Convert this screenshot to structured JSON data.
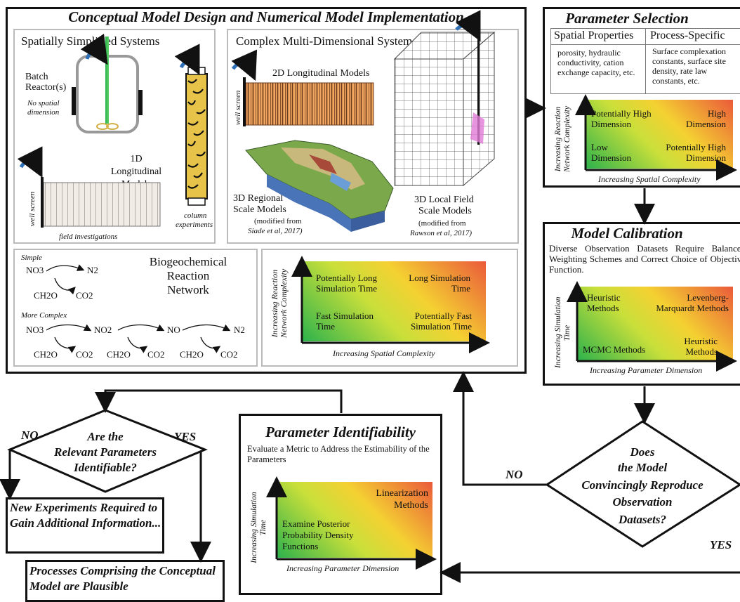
{
  "main": {
    "title": "Conceptual Model Design and Numerical Model Implementation",
    "simplified": {
      "title": "Spatially Simplified Systems",
      "batch": "Batch Reactor(s)",
      "batch_note1": "No spatial",
      "batch_note2": "dimension",
      "longitudinal": "1D Longitudinal Models",
      "well_screen": "well screen",
      "field": "field investigations",
      "column1": "column",
      "column2": "experiments"
    },
    "complex": {
      "title": "Complex Multi-Dimensional Systems",
      "longitudinal2d": "2D Longitudinal Models",
      "well_screen": "well screen",
      "regional1": "3D Regional",
      "regional2": "Scale Models",
      "regional_mod1": "(modified from",
      "regional_mod2": "Siade et al, 2017)",
      "local1": "3D Local Field",
      "local2": "Scale Models",
      "local_mod1": "(modified from",
      "local_mod2": "Rawson et al, 2017)"
    },
    "reaction": {
      "simple": "Simple",
      "more_complex": "More Complex",
      "title1": "Biogeochemical",
      "title2": "Reaction",
      "title3": "Network",
      "no3": "NO3",
      "n2": "N2",
      "ch2o": "CH2O",
      "co2": "CO2",
      "no2": "NO2",
      "no": "NO"
    },
    "complexity": {
      "ylabel1": "Increasing Reaction",
      "ylabel2": "Network Complexity",
      "xlabel": "Increasing Spatial Complexity",
      "tl": "Potentially Long Simulation Time",
      "tr": "Long Simulation Time",
      "bl": "Fast Simulation Time",
      "br": "Potentially Fast Simulation Time"
    }
  },
  "param_selection": {
    "title": "Parameter Selection",
    "col1_header": "Spatial Properties",
    "col2_header": "Process-Specific",
    "col1_text": "porosity, hydraulic conductivity, cation exchange capacity, etc.",
    "col2_text": "Surface complexation constants, surface site density, rate law constants, etc.",
    "ylabel1": "Increasing Reaction",
    "ylabel2": "Network Complexity",
    "xlabel": "Increasing Spatial Complexity",
    "tl": "Potentially High Dimension",
    "tr": "High Dimension",
    "bl": "Low Dimension",
    "br": "Potentially High Dimension"
  },
  "calibration": {
    "title": "Model Calibration",
    "text": "Diverse Observation Datasets Require Balanced Weighting Schemes and Correct Choice of Objective Function.",
    "ylabel1": "Increasing Simulation",
    "ylabel2": "Time",
    "xlabel": "Increasing Parameter Dimension",
    "tl": "Heuristic Methods",
    "tr": "Levenberg-Marquardt Methods",
    "bl": "MCMC Methods",
    "br": "Heuristic Methods"
  },
  "reproduce": {
    "q1": "Does",
    "q2": "the Model",
    "q3": "Convincingly Reproduce",
    "q4": "Observation",
    "q5": "Datasets?",
    "no": "NO",
    "yes": "YES"
  },
  "identifiability": {
    "title": "Parameter Identifiability",
    "text": "Evaluate a Metric to Address the Estimability of the Parameters",
    "ylabel1": "Increasing Simulation",
    "ylabel2": "Time",
    "xlabel": "Increasing Parameter Dimension",
    "tr": "Linearization Methods",
    "bl": "Examine Posterior Probability Density Functions"
  },
  "identifiable": {
    "q1": "Are the",
    "q2": "Relevant Parameters",
    "q3": "Identifiable?",
    "no": "NO",
    "yes": "YES"
  },
  "new_experiments": "New Experiments Required to Gain Additional Information...",
  "plausible": "Processes Comprising the Conceptual Model are Plausible"
}
